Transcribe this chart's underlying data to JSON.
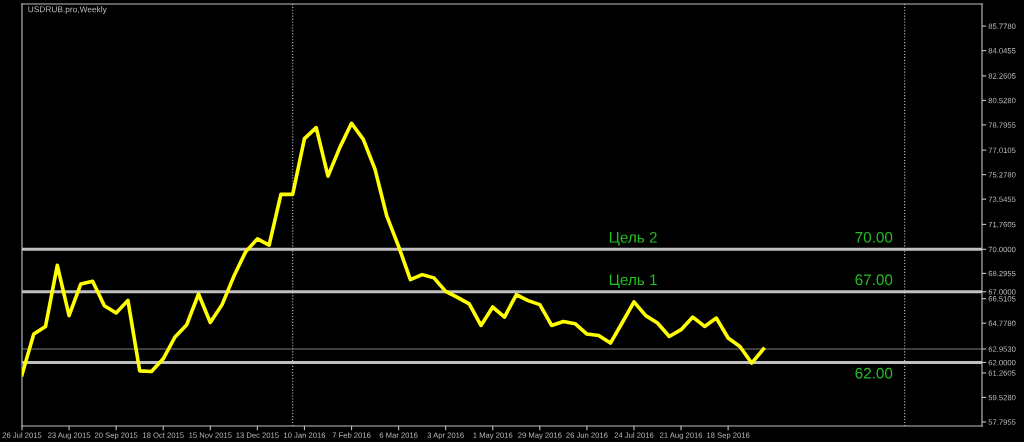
{
  "chart_data": {
    "type": "line",
    "title": "USDRUB.pro,Weekly",
    "x": [
      "2015-07-26",
      "2015-08-02",
      "2015-08-09",
      "2015-08-16",
      "2015-08-23",
      "2015-08-30",
      "2015-09-06",
      "2015-09-13",
      "2015-09-20",
      "2015-09-27",
      "2015-10-04",
      "2015-10-11",
      "2015-10-18",
      "2015-10-25",
      "2015-11-01",
      "2015-11-08",
      "2015-11-15",
      "2015-11-22",
      "2015-11-29",
      "2015-12-06",
      "2015-12-13",
      "2015-12-20",
      "2015-12-27",
      "2016-01-03",
      "2016-01-10",
      "2016-01-17",
      "2016-01-24",
      "2016-01-31",
      "2016-02-07",
      "2016-02-14",
      "2016-02-21",
      "2016-02-28",
      "2016-03-06",
      "2016-03-13",
      "2016-03-20",
      "2016-03-27",
      "2016-04-03",
      "2016-04-10",
      "2016-04-17",
      "2016-04-24",
      "2016-05-01",
      "2016-05-08",
      "2016-05-15",
      "2016-05-22",
      "2016-05-29",
      "2016-06-05",
      "2016-06-12",
      "2016-06-19",
      "2016-06-26",
      "2016-07-03",
      "2016-07-10",
      "2016-07-17",
      "2016-07-24",
      "2016-07-31",
      "2016-08-07",
      "2016-08-14",
      "2016-08-21",
      "2016-08-28",
      "2016-09-04",
      "2016-09-11",
      "2016-09-18",
      "2016-09-25",
      "2016-10-02",
      "2016-10-09"
    ],
    "series": [
      {
        "color": "#ffff00",
        "values": [
          61.13,
          64.01,
          64.55,
          68.87,
          65.31,
          67.55,
          67.74,
          66.01,
          65.5,
          66.39,
          61.41,
          61.36,
          62.26,
          63.8,
          64.67,
          66.84,
          64.83,
          66.09,
          68.09,
          69.82,
          70.74,
          70.29,
          73.88,
          73.88,
          77.82,
          78.6,
          75.17,
          77.19,
          78.91,
          77.77,
          75.65,
          72.34,
          70.21,
          67.86,
          68.21,
          67.98,
          67.03,
          66.6,
          66.14,
          64.62,
          65.92,
          65.21,
          66.79,
          66.37,
          66.09,
          64.62,
          64.9,
          64.74,
          64.01,
          63.91,
          63.37,
          64.81,
          66.28,
          65.31,
          64.79,
          63.84,
          64.32,
          65.21,
          64.55,
          65.14,
          63.73,
          63.13,
          61.96,
          62.95
        ]
      }
    ],
    "xlim": [
      "2015-07-26",
      "2017-02-16"
    ],
    "xticks": [
      {
        "value": "2015-07-26",
        "label": "26 Jul 2015"
      },
      {
        "value": "2015-08-23",
        "label": "23 Aug 2015"
      },
      {
        "value": "2015-09-20",
        "label": "20 Sep 2015"
      },
      {
        "value": "2015-10-18",
        "label": "18 Oct 2015"
      },
      {
        "value": "2015-11-15",
        "label": "15 Nov 2015"
      },
      {
        "value": "2015-12-13",
        "label": "13 Dec 2015"
      },
      {
        "value": "2016-01-10",
        "label": "10 Jan 2016"
      },
      {
        "value": "2016-02-07",
        "label": "7 Feb 2016"
      },
      {
        "value": "2016-03-06",
        "label": "6 Mar 2016"
      },
      {
        "value": "2016-04-03",
        "label": "3 Apr 2016"
      },
      {
        "value": "2016-05-01",
        "label": "1 May 2016"
      },
      {
        "value": "2016-05-29",
        "label": "29 May 2016"
      },
      {
        "value": "2016-06-26",
        "label": "26 Jun 2016"
      },
      {
        "value": "2016-07-24",
        "label": "24 Jul 2016"
      },
      {
        "value": "2016-08-21",
        "label": "21 Aug 2016"
      },
      {
        "value": "2016-09-18",
        "label": "18 Sep 2016"
      }
    ],
    "ylim": [
      57.51,
      87.34
    ],
    "yticks": [
      57.7955,
      {
        "value": 59.528,
        "label": "59.5280"
      },
      61.2605,
      {
        "value": 62,
        "label": "62.0000"
      },
      {
        "value": 62.953,
        "label": "62.9530"
      },
      {
        "value": 64.778,
        "label": "64.7780"
      },
      66.5105,
      {
        "value": 67,
        "label": "67.0000"
      },
      68.2955,
      {
        "value": 70,
        "label": "70.0000"
      },
      71.7605,
      73.5455,
      {
        "value": 75.278,
        "label": "75.2780"
      },
      77.0105,
      78.7955,
      {
        "value": 80.528,
        "label": "80.5280"
      },
      82.2605,
      84.0455,
      {
        "value": 85.778,
        "label": "85.7780"
      }
    ],
    "ref_lines": [
      {
        "axis": "y",
        "value": 70,
        "label": "Цель 2",
        "color": "#c0c0c0",
        "line_style": "solid"
      },
      {
        "axis": "y",
        "value": 67,
        "label": "Цель 1",
        "color": "#c0c0c0",
        "line_style": "solid"
      },
      {
        "axis": "y",
        "value": 62,
        "color": "#c0c0c0",
        "line_style": "solid"
      },
      {
        "axis": "y",
        "value": 62.953,
        "color": "#808080",
        "line_style": "solid"
      },
      {
        "axis": "x",
        "value": "2016-01-03",
        "color": "#c0c0c0",
        "line_style": "dotted"
      },
      {
        "axis": "x",
        "value": "2017-01-01",
        "color": "#c0c0c0",
        "line_style": "dotted"
      }
    ],
    "annotations": [
      {
        "text": "70.00",
        "x": "2016-12-25",
        "y": 70
      },
      {
        "text": "67.00",
        "x": "2016-12-25",
        "y": 67
      },
      {
        "text": "62.00",
        "x": "2016-12-25",
        "y": 62
      }
    ],
    "grid": false,
    "legend": false,
    "marker": "none",
    "line_style": "solid"
  }
}
